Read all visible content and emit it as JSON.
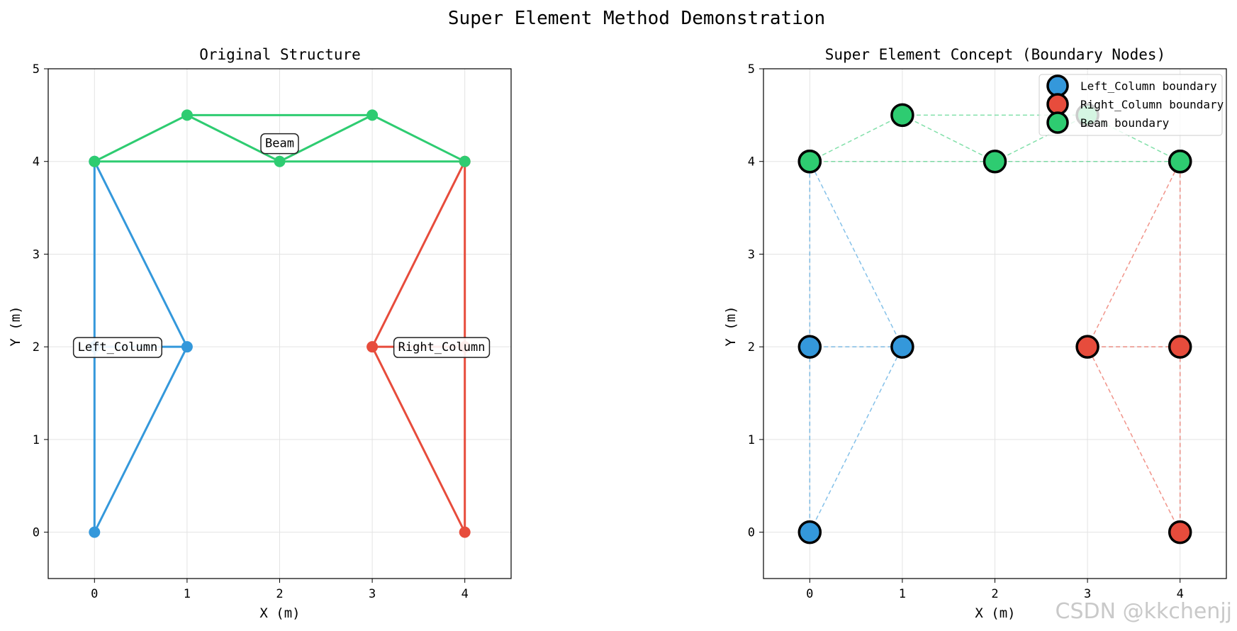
{
  "figure": {
    "title": "Super Element Method Demonstration",
    "watermark": "CSDN @kkchenjj"
  },
  "colors": {
    "Left_Column": "#3498db",
    "Right_Column": "#e74c3c",
    "Beam": "#2ecc71"
  },
  "chart_data": [
    {
      "type": "line",
      "title": "Original Structure",
      "xlabel": "X (m)",
      "ylabel": "Y (m)",
      "xlim": [
        -0.5,
        4.5
      ],
      "ylim": [
        -0.5,
        5
      ],
      "xticks": [
        0,
        1,
        2,
        3,
        4
      ],
      "yticks": [
        0,
        1,
        2,
        3,
        4,
        5
      ],
      "grid": true,
      "legend": "none",
      "elements": [
        {
          "name": "Left_Column",
          "nodes": [
            [
              0,
              0
            ],
            [
              1,
              2
            ],
            [
              0,
              4
            ],
            [
              0,
              2
            ]
          ],
          "edges": [
            [
              0,
              1
            ],
            [
              1,
              2
            ],
            [
              2,
              0
            ],
            [
              3,
              1
            ]
          ],
          "label": {
            "text": "Left_Column",
            "at": [
              0.25,
              2
            ]
          }
        },
        {
          "name": "Right_Column",
          "nodes": [
            [
              4,
              0
            ],
            [
              3,
              2
            ],
            [
              4,
              4
            ],
            [
              4,
              2
            ]
          ],
          "edges": [
            [
              0,
              1
            ],
            [
              1,
              2
            ],
            [
              2,
              0
            ],
            [
              3,
              1
            ]
          ],
          "label": {
            "text": "Right_Column",
            "at": [
              3.75,
              2
            ]
          }
        },
        {
          "name": "Beam",
          "nodes": [
            [
              0,
              4
            ],
            [
              1,
              4.5
            ],
            [
              2,
              4
            ],
            [
              3,
              4.5
            ],
            [
              4,
              4
            ]
          ],
          "edges": [
            [
              0,
              1
            ],
            [
              1,
              3
            ],
            [
              3,
              4
            ],
            [
              0,
              4
            ],
            [
              1,
              2
            ],
            [
              2,
              3
            ]
          ],
          "label": {
            "text": "Beam",
            "at": [
              2,
              4.2
            ]
          }
        }
      ]
    },
    {
      "type": "scatter",
      "title": "Super Element Concept (Boundary Nodes)",
      "xlabel": "X (m)",
      "ylabel": "Y (m)",
      "xlim": [
        -0.5,
        4.5
      ],
      "ylim": [
        -0.5,
        5
      ],
      "xticks": [
        0,
        1,
        2,
        3,
        4
      ],
      "yticks": [
        0,
        1,
        2,
        3,
        4,
        5
      ],
      "grid": true,
      "legend": "top-right",
      "series": [
        {
          "name": "Left_Column boundary",
          "key": "Left_Column",
          "points": [
            [
              0,
              0
            ],
            [
              0,
              2
            ],
            [
              1,
              2
            ],
            [
              0,
              4
            ]
          ],
          "edges": [
            [
              [
                0,
                0
              ],
              [
                0,
                4
              ]
            ],
            [
              [
                0,
                0
              ],
              [
                1,
                2
              ]
            ],
            [
              [
                1,
                2
              ],
              [
                0,
                4
              ]
            ],
            [
              [
                0,
                2
              ],
              [
                1,
                2
              ]
            ]
          ]
        },
        {
          "name": "Right_Column boundary",
          "key": "Right_Column",
          "points": [
            [
              4,
              0
            ],
            [
              3,
              2
            ],
            [
              4,
              2
            ],
            [
              4,
              4
            ]
          ],
          "edges": [
            [
              [
                4,
                0
              ],
              [
                4,
                4
              ]
            ],
            [
              [
                4,
                0
              ],
              [
                3,
                2
              ]
            ],
            [
              [
                3,
                2
              ],
              [
                4,
                4
              ]
            ],
            [
              [
                3,
                2
              ],
              [
                4,
                2
              ]
            ]
          ]
        },
        {
          "name": "Beam boundary",
          "key": "Beam",
          "points": [
            [
              0,
              4
            ],
            [
              1,
              4.5
            ],
            [
              2,
              4
            ],
            [
              3,
              4.5
            ],
            [
              4,
              4
            ]
          ],
          "edges": [
            [
              [
                0,
                4
              ],
              [
                1,
                4.5
              ]
            ],
            [
              [
                1,
                4.5
              ],
              [
                3,
                4.5
              ]
            ],
            [
              [
                3,
                4.5
              ],
              [
                4,
                4
              ]
            ],
            [
              [
                0,
                4
              ],
              [
                4,
                4
              ]
            ],
            [
              [
                1,
                4.5
              ],
              [
                2,
                4
              ]
            ],
            [
              [
                2,
                4
              ],
              [
                3,
                4.5
              ]
            ]
          ]
        }
      ]
    }
  ]
}
